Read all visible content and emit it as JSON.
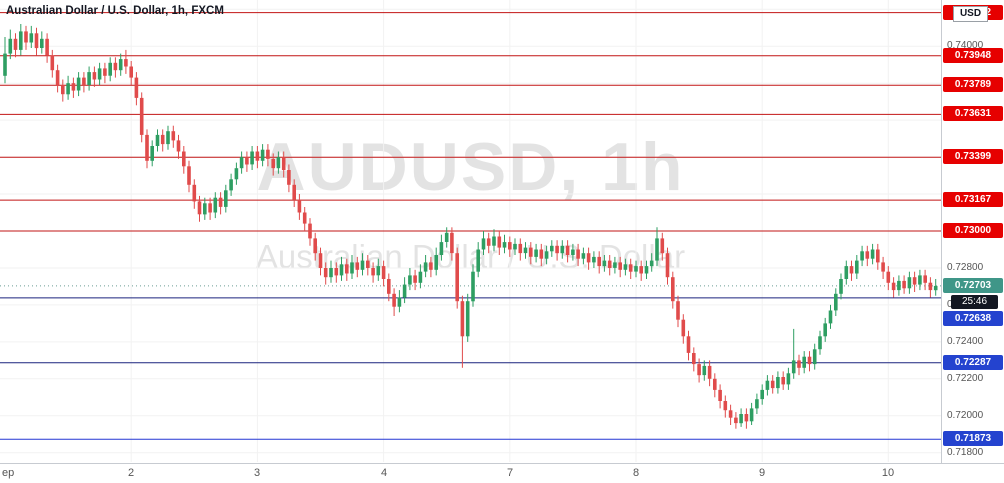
{
  "legend": {
    "title": "Australian Dollar / U.S. Dollar, 1h, FXCM"
  },
  "watermark": {
    "line1": "AUDUSD, 1h",
    "line2": "Australian Dollar / U.S. Dollar"
  },
  "currency_box": "USD",
  "countdown": "25:46",
  "current_price": {
    "label": "0.72703",
    "value": 0.72703
  },
  "levels": {
    "resistance": [
      {
        "label": "0.74182",
        "price": 0.74182
      },
      {
        "label": "0.73948",
        "price": 0.73948
      },
      {
        "label": "0.73789",
        "price": 0.73789
      },
      {
        "label": "0.73631",
        "price": 0.73631
      },
      {
        "label": "0.73399",
        "price": 0.73399
      },
      {
        "label": "0.73167",
        "price": 0.73167
      },
      {
        "label": "0.73000",
        "price": 0.73
      }
    ],
    "support": [
      {
        "label": "0.72638",
        "price": 0.72638,
        "line": "#1a237e"
      },
      {
        "label": "0.72287",
        "price": 0.72287,
        "line": "#1a237e"
      },
      {
        "label": "0.71873",
        "price": 0.71873,
        "line": "#2336d4"
      }
    ]
  },
  "colors": {
    "up_candle": "#2e9e62",
    "down_candle": "#e04b4b",
    "resistance_line": "#c21515",
    "resistance_badge": "#e60000",
    "support_badge": "#2443cf",
    "current_badge": "#3f9688",
    "current_line": "#6a9c93",
    "countdown_bg": "#131722",
    "grid": "#f2f2f2",
    "axis_text": "#555555"
  },
  "chart_data": {
    "type": "candlestick",
    "symbol": "AUDUSD",
    "interval": "1h",
    "exchange": "FXCM",
    "title": "Australian Dollar / U.S. Dollar, 1h, FXCM",
    "y_min": 0.7175,
    "y_max": 0.7425,
    "y_ticks": [
      "0.74000",
      "0.72800",
      "0.72600",
      "0.72400",
      "0.72200",
      "0.72000",
      "0.71800"
    ],
    "x_labels": [
      {
        "text": "ep",
        "index": 0,
        "align": "left"
      },
      {
        "text": "2",
        "index": 24
      },
      {
        "text": "3",
        "index": 48
      },
      {
        "text": "4",
        "index": 72
      },
      {
        "text": "7",
        "index": 96
      },
      {
        "text": "8",
        "index": 120
      },
      {
        "text": "9",
        "index": 144
      },
      {
        "text": "10",
        "index": 168
      }
    ],
    "candles": [
      [
        0.7384,
        0.7405,
        0.738,
        0.7396
      ],
      [
        0.7396,
        0.7409,
        0.7393,
        0.7404
      ],
      [
        0.7404,
        0.7407,
        0.7394,
        0.7398
      ],
      [
        0.7398,
        0.7412,
        0.7395,
        0.7408
      ],
      [
        0.7408,
        0.7411,
        0.7398,
        0.7402
      ],
      [
        0.7402,
        0.7411,
        0.7399,
        0.7407
      ],
      [
        0.7407,
        0.741,
        0.7395,
        0.7399
      ],
      [
        0.7399,
        0.7408,
        0.7396,
        0.7404
      ],
      [
        0.7404,
        0.7407,
        0.7391,
        0.7395
      ],
      [
        0.7395,
        0.7398,
        0.7383,
        0.7387
      ],
      [
        0.7387,
        0.739,
        0.7375,
        0.7379
      ],
      [
        0.7379,
        0.7382,
        0.737,
        0.7374
      ],
      [
        0.7374,
        0.7384,
        0.7371,
        0.738
      ],
      [
        0.738,
        0.7383,
        0.7372,
        0.7376
      ],
      [
        0.7376,
        0.7386,
        0.7373,
        0.7383
      ],
      [
        0.7383,
        0.7386,
        0.7375,
        0.7379
      ],
      [
        0.7379,
        0.7389,
        0.7376,
        0.7386
      ],
      [
        0.7386,
        0.7389,
        0.7378,
        0.7382
      ],
      [
        0.7382,
        0.7391,
        0.7379,
        0.7388
      ],
      [
        0.7388,
        0.7391,
        0.738,
        0.7384
      ],
      [
        0.7384,
        0.7394,
        0.7381,
        0.7391
      ],
      [
        0.7391,
        0.7394,
        0.7383,
        0.7387
      ],
      [
        0.7387,
        0.7396,
        0.7384,
        0.7393
      ],
      [
        0.7393,
        0.7398,
        0.7385,
        0.7389
      ],
      [
        0.7389,
        0.7392,
        0.7379,
        0.7383
      ],
      [
        0.7383,
        0.7386,
        0.7368,
        0.7372
      ],
      [
        0.7372,
        0.7375,
        0.7348,
        0.7352
      ],
      [
        0.7352,
        0.7355,
        0.7334,
        0.7338
      ],
      [
        0.7338,
        0.7349,
        0.7335,
        0.7346
      ],
      [
        0.7346,
        0.7355,
        0.7343,
        0.7352
      ],
      [
        0.7352,
        0.7355,
        0.7343,
        0.7347
      ],
      [
        0.7347,
        0.7357,
        0.7344,
        0.7354
      ],
      [
        0.7354,
        0.7357,
        0.7345,
        0.7349
      ],
      [
        0.7349,
        0.7352,
        0.7339,
        0.7343
      ],
      [
        0.7343,
        0.7346,
        0.7331,
        0.7335
      ],
      [
        0.7335,
        0.7338,
        0.7321,
        0.7325
      ],
      [
        0.7325,
        0.7328,
        0.7312,
        0.7316
      ],
      [
        0.7316,
        0.7319,
        0.7305,
        0.7309
      ],
      [
        0.7309,
        0.7318,
        0.7306,
        0.7315
      ],
      [
        0.7315,
        0.7318,
        0.7306,
        0.731
      ],
      [
        0.731,
        0.7321,
        0.7307,
        0.7318
      ],
      [
        0.7318,
        0.7321,
        0.7309,
        0.7313
      ],
      [
        0.7313,
        0.7325,
        0.731,
        0.7322
      ],
      [
        0.7322,
        0.7331,
        0.7319,
        0.7328
      ],
      [
        0.7328,
        0.7337,
        0.7325,
        0.7334
      ],
      [
        0.7334,
        0.7343,
        0.7331,
        0.734
      ],
      [
        0.734,
        0.7343,
        0.7332,
        0.7336
      ],
      [
        0.7336,
        0.7346,
        0.7333,
        0.7343
      ],
      [
        0.7343,
        0.7346,
        0.7334,
        0.7338
      ],
      [
        0.7338,
        0.7347,
        0.7335,
        0.7344
      ],
      [
        0.7344,
        0.7347,
        0.7335,
        0.7339
      ],
      [
        0.7339,
        0.7342,
        0.733,
        0.7334
      ],
      [
        0.7334,
        0.7343,
        0.7331,
        0.734
      ],
      [
        0.734,
        0.7343,
        0.7329,
        0.7333
      ],
      [
        0.7333,
        0.7336,
        0.7321,
        0.7325
      ],
      [
        0.7325,
        0.7328,
        0.7313,
        0.7317
      ],
      [
        0.7317,
        0.732,
        0.7306,
        0.731
      ],
      [
        0.731,
        0.7313,
        0.73,
        0.7304
      ],
      [
        0.7304,
        0.7307,
        0.7292,
        0.7296
      ],
      [
        0.7296,
        0.7299,
        0.7284,
        0.7288
      ],
      [
        0.7288,
        0.7291,
        0.7276,
        0.728
      ],
      [
        0.728,
        0.7283,
        0.7271,
        0.7275
      ],
      [
        0.7275,
        0.7284,
        0.7272,
        0.728
      ],
      [
        0.728,
        0.7283,
        0.7272,
        0.7276
      ],
      [
        0.7276,
        0.7286,
        0.7273,
        0.7282
      ],
      [
        0.7282,
        0.7285,
        0.7273,
        0.7277
      ],
      [
        0.7277,
        0.7287,
        0.7274,
        0.7283
      ],
      [
        0.7283,
        0.7286,
        0.7275,
        0.7279
      ],
      [
        0.7279,
        0.7288,
        0.7276,
        0.7284
      ],
      [
        0.7284,
        0.7287,
        0.7276,
        0.728
      ],
      [
        0.728,
        0.7283,
        0.7272,
        0.7276
      ],
      [
        0.7276,
        0.7285,
        0.7273,
        0.7281
      ],
      [
        0.7281,
        0.7284,
        0.727,
        0.7274
      ],
      [
        0.7274,
        0.7277,
        0.7262,
        0.7266
      ],
      [
        0.7266,
        0.7269,
        0.7254,
        0.7259
      ],
      [
        0.7259,
        0.7268,
        0.7256,
        0.7264
      ],
      [
        0.7264,
        0.7275,
        0.7261,
        0.7271
      ],
      [
        0.7271,
        0.728,
        0.7268,
        0.7276
      ],
      [
        0.7276,
        0.7279,
        0.7268,
        0.7272
      ],
      [
        0.7272,
        0.7282,
        0.7269,
        0.7278
      ],
      [
        0.7278,
        0.7287,
        0.7275,
        0.7283
      ],
      [
        0.7283,
        0.7286,
        0.7275,
        0.7279
      ],
      [
        0.7279,
        0.7291,
        0.7276,
        0.7287
      ],
      [
        0.7287,
        0.7298,
        0.7284,
        0.7294
      ],
      [
        0.7294,
        0.7302,
        0.7291,
        0.7299
      ],
      [
        0.7299,
        0.7302,
        0.7284,
        0.7288
      ],
      [
        0.7288,
        0.7291,
        0.7258,
        0.7262
      ],
      [
        0.7262,
        0.7265,
        0.7226,
        0.7243
      ],
      [
        0.7243,
        0.7266,
        0.724,
        0.7262
      ],
      [
        0.7262,
        0.7282,
        0.7259,
        0.7278
      ],
      [
        0.7278,
        0.7294,
        0.7275,
        0.729
      ],
      [
        0.729,
        0.73,
        0.7287,
        0.7296
      ],
      [
        0.7296,
        0.7299,
        0.7288,
        0.7292
      ],
      [
        0.7292,
        0.7301,
        0.7289,
        0.7297
      ],
      [
        0.7297,
        0.73,
        0.7287,
        0.7291
      ],
      [
        0.7291,
        0.7298,
        0.7288,
        0.7294
      ],
      [
        0.7294,
        0.7297,
        0.7286,
        0.729
      ],
      [
        0.729,
        0.7296,
        0.7287,
        0.7293
      ],
      [
        0.7293,
        0.7296,
        0.7284,
        0.7288
      ],
      [
        0.7288,
        0.7294,
        0.7285,
        0.7291
      ],
      [
        0.7291,
        0.7294,
        0.7282,
        0.7286
      ],
      [
        0.7286,
        0.7293,
        0.7283,
        0.729
      ],
      [
        0.729,
        0.7293,
        0.7281,
        0.7285
      ],
      [
        0.7285,
        0.7292,
        0.7282,
        0.7289
      ],
      [
        0.7289,
        0.7295,
        0.7286,
        0.7292
      ],
      [
        0.7292,
        0.7295,
        0.7284,
        0.7288
      ],
      [
        0.7288,
        0.7295,
        0.7285,
        0.7292
      ],
      [
        0.7292,
        0.7295,
        0.7283,
        0.7287
      ],
      [
        0.7287,
        0.7293,
        0.7284,
        0.729
      ],
      [
        0.729,
        0.7293,
        0.7281,
        0.7285
      ],
      [
        0.7285,
        0.7291,
        0.7282,
        0.7288
      ],
      [
        0.7288,
        0.7291,
        0.7279,
        0.7283
      ],
      [
        0.7283,
        0.7289,
        0.728,
        0.7286
      ],
      [
        0.7286,
        0.7289,
        0.7277,
        0.7281
      ],
      [
        0.7281,
        0.7287,
        0.7278,
        0.7284
      ],
      [
        0.7284,
        0.7287,
        0.7276,
        0.728
      ],
      [
        0.728,
        0.7286,
        0.7277,
        0.7283
      ],
      [
        0.7283,
        0.7286,
        0.7275,
        0.7279
      ],
      [
        0.7279,
        0.7285,
        0.7276,
        0.7282
      ],
      [
        0.7282,
        0.7285,
        0.7274,
        0.7278
      ],
      [
        0.7278,
        0.7284,
        0.7275,
        0.7281
      ],
      [
        0.7281,
        0.7284,
        0.7273,
        0.7277
      ],
      [
        0.7277,
        0.7284,
        0.7274,
        0.7281
      ],
      [
        0.7281,
        0.7288,
        0.7278,
        0.7284
      ],
      [
        0.7284,
        0.7302,
        0.7281,
        0.7296
      ],
      [
        0.7296,
        0.7299,
        0.7284,
        0.7288
      ],
      [
        0.7288,
        0.7291,
        0.7271,
        0.7275
      ],
      [
        0.7275,
        0.7278,
        0.7258,
        0.7262
      ],
      [
        0.7262,
        0.7265,
        0.7248,
        0.7252
      ],
      [
        0.7252,
        0.7255,
        0.7239,
        0.7243
      ],
      [
        0.7243,
        0.7246,
        0.723,
        0.7234
      ],
      [
        0.7234,
        0.7237,
        0.7224,
        0.7228
      ],
      [
        0.7228,
        0.7231,
        0.7218,
        0.7222
      ],
      [
        0.7222,
        0.723,
        0.7219,
        0.7227
      ],
      [
        0.7227,
        0.723,
        0.7216,
        0.722
      ],
      [
        0.722,
        0.7223,
        0.721,
        0.7214
      ],
      [
        0.7214,
        0.7217,
        0.7204,
        0.7208
      ],
      [
        0.7208,
        0.7211,
        0.7199,
        0.7203
      ],
      [
        0.7203,
        0.7206,
        0.7195,
        0.7199
      ],
      [
        0.7199,
        0.7202,
        0.7193,
        0.7196
      ],
      [
        0.7196,
        0.7204,
        0.7194,
        0.7201
      ],
      [
        0.7201,
        0.7204,
        0.7193,
        0.7197
      ],
      [
        0.7197,
        0.7207,
        0.7195,
        0.7204
      ],
      [
        0.7204,
        0.7212,
        0.7201,
        0.7209
      ],
      [
        0.7209,
        0.7217,
        0.7206,
        0.7214
      ],
      [
        0.7214,
        0.7222,
        0.7211,
        0.7219
      ],
      [
        0.7219,
        0.7222,
        0.7212,
        0.7215
      ],
      [
        0.7215,
        0.7224,
        0.7212,
        0.7221
      ],
      [
        0.7221,
        0.7224,
        0.7214,
        0.7217
      ],
      [
        0.7217,
        0.7226,
        0.7214,
        0.7223
      ],
      [
        0.7223,
        0.7247,
        0.722,
        0.723
      ],
      [
        0.723,
        0.7233,
        0.7222,
        0.7226
      ],
      [
        0.7226,
        0.7235,
        0.7223,
        0.7232
      ],
      [
        0.7232,
        0.7235,
        0.7224,
        0.7228
      ],
      [
        0.7228,
        0.7239,
        0.7225,
        0.7236
      ],
      [
        0.7236,
        0.7246,
        0.7233,
        0.7243
      ],
      [
        0.7243,
        0.7253,
        0.724,
        0.725
      ],
      [
        0.725,
        0.726,
        0.7247,
        0.7257
      ],
      [
        0.7257,
        0.7269,
        0.7254,
        0.7266
      ],
      [
        0.7266,
        0.7277,
        0.7263,
        0.7274
      ],
      [
        0.7274,
        0.7284,
        0.7271,
        0.7281
      ],
      [
        0.7281,
        0.7284,
        0.7273,
        0.7277
      ],
      [
        0.7277,
        0.7287,
        0.7274,
        0.7284
      ],
      [
        0.7284,
        0.7292,
        0.7281,
        0.7289
      ],
      [
        0.7289,
        0.7292,
        0.7281,
        0.7285
      ],
      [
        0.7285,
        0.7293,
        0.7282,
        0.729
      ],
      [
        0.729,
        0.7293,
        0.7279,
        0.7283
      ],
      [
        0.7283,
        0.7286,
        0.7274,
        0.7278
      ],
      [
        0.7278,
        0.7281,
        0.7268,
        0.7272
      ],
      [
        0.7272,
        0.7275,
        0.7264,
        0.7268
      ],
      [
        0.7268,
        0.7276,
        0.7265,
        0.7273
      ],
      [
        0.7273,
        0.7276,
        0.7266,
        0.7269
      ],
      [
        0.7269,
        0.7278,
        0.7266,
        0.7275
      ],
      [
        0.7275,
        0.7278,
        0.7267,
        0.7271
      ],
      [
        0.7271,
        0.7279,
        0.7268,
        0.7276
      ],
      [
        0.7276,
        0.7279,
        0.7268,
        0.7272
      ],
      [
        0.7272,
        0.7275,
        0.7264,
        0.7268
      ],
      [
        0.7268,
        0.7274,
        0.7265,
        0.72703
      ]
    ]
  }
}
